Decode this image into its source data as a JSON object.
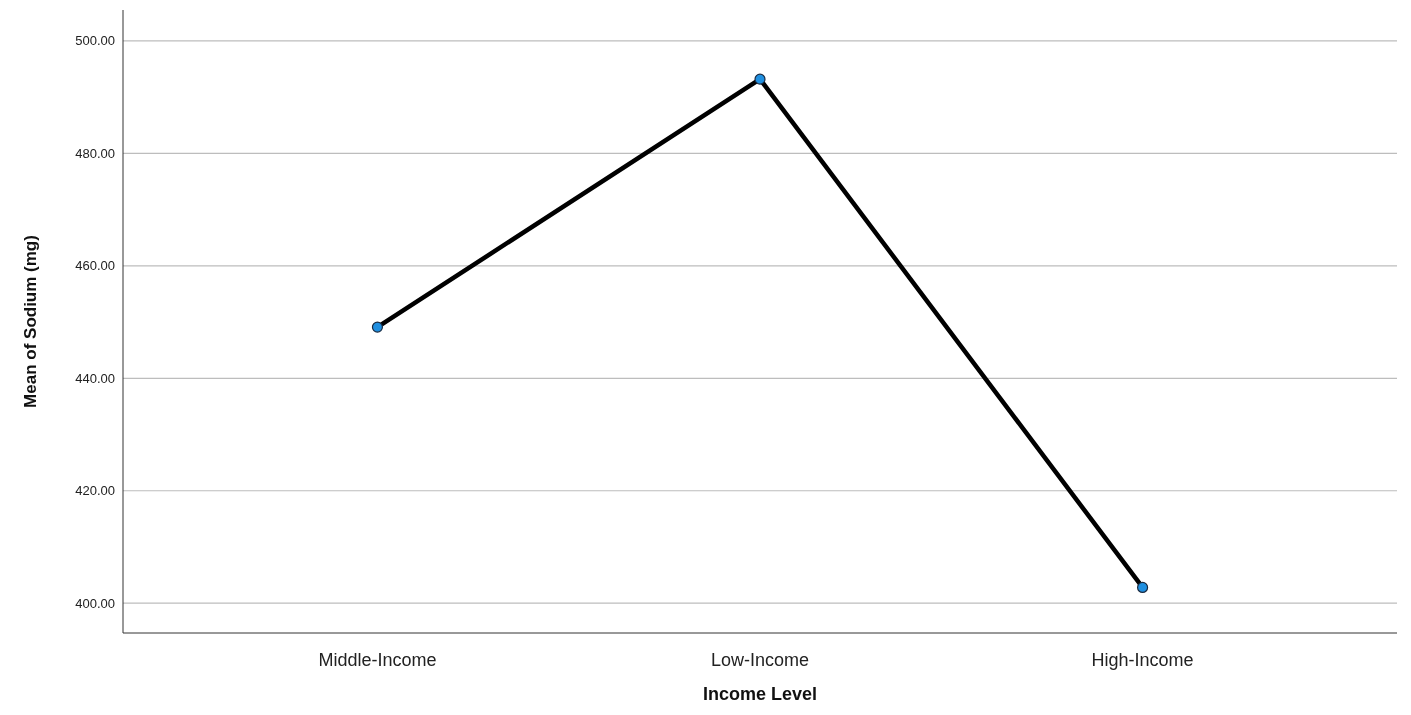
{
  "chart_data": {
    "type": "line",
    "xlabel": "Income Level",
    "ylabel": "Mean of Sodium (mg)",
    "categories": [
      "Middle-Income",
      "Low-Income",
      "High-Income"
    ],
    "series": [
      {
        "color": "#000000",
        "values": [
          449.1,
          493.2,
          402.8
        ]
      }
    ],
    "ylim": [
      394.7,
      505.5
    ],
    "yticks": [
      {
        "value": 400,
        "label": "400.00"
      },
      {
        "value": 420,
        "label": "420.00"
      },
      {
        "value": 440,
        "label": "440.00"
      },
      {
        "value": 460,
        "label": "460.00"
      },
      {
        "value": 480,
        "label": "480.00"
      },
      {
        "value": 500,
        "label": "500.00"
      }
    ],
    "grid": "y",
    "marker": "circle",
    "line_style": "solid"
  }
}
